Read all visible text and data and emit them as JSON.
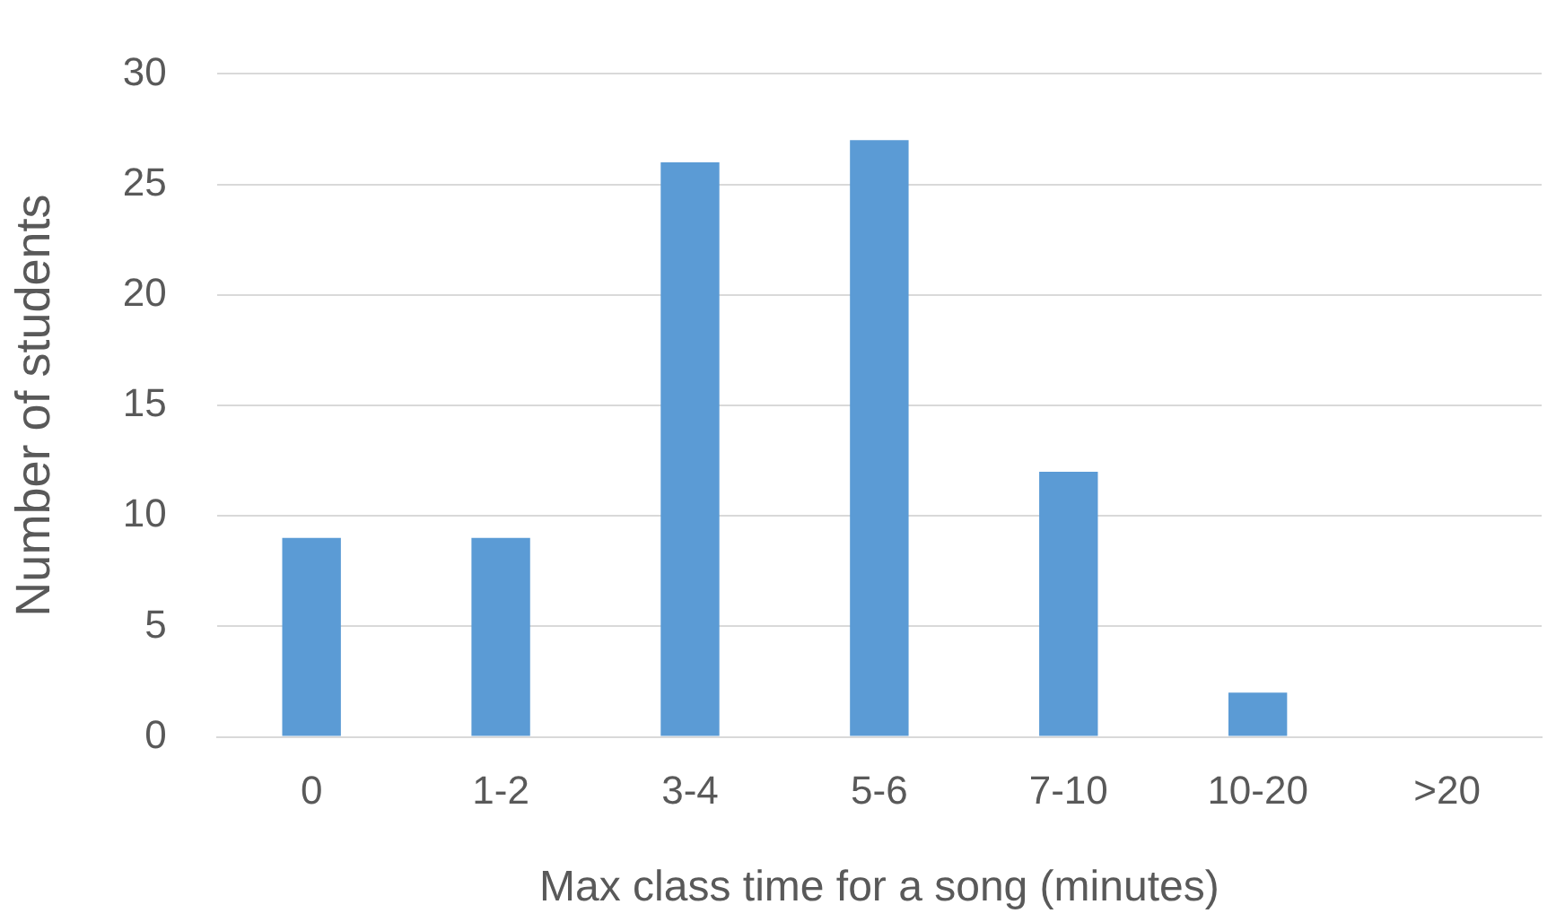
{
  "chart_data": {
    "type": "bar",
    "xlabel": "Max class time for a song (minutes)",
    "ylabel": "Number of students",
    "categories": [
      "0",
      "1-2",
      "3-4",
      "5-6",
      "7-10",
      "10-20",
      ">20"
    ],
    "values": [
      9,
      9,
      26,
      27,
      12,
      2,
      0
    ],
    "color": "#5b9bd5",
    "ylim": [
      0,
      30
    ],
    "yticks": [
      0,
      5,
      10,
      15,
      20,
      25,
      30
    ],
    "grid": "y",
    "legend": false
  }
}
